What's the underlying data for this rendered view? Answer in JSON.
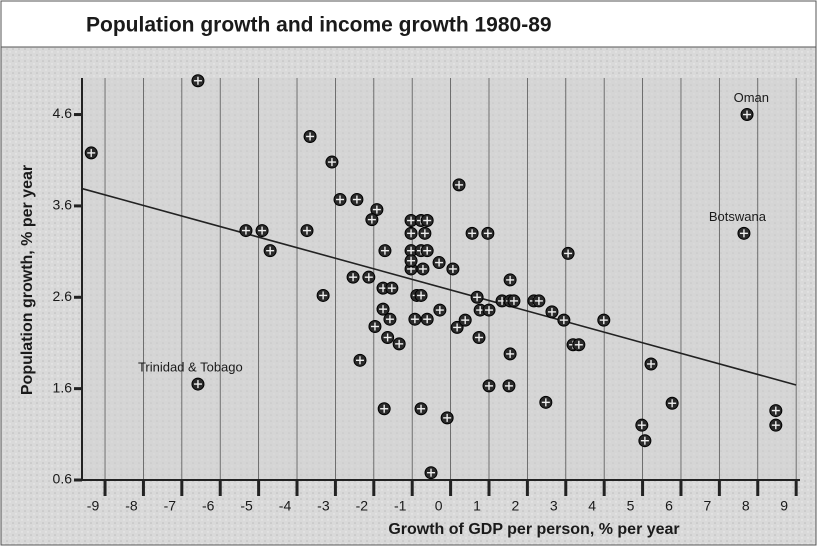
{
  "chart_data": {
    "type": "scatter",
    "title": "Population growth and income growth 1980-89",
    "xlabel": "Growth of GDP per person, % per year",
    "ylabel": "Population growth, % per year",
    "xlim": [
      -9.6,
      9.1
    ],
    "ylim": [
      0.6,
      5.0
    ],
    "xticks": [
      -9,
      -8,
      -7,
      -6,
      -5,
      -4,
      -3,
      -2,
      -1,
      0,
      1,
      2,
      3,
      4,
      5,
      6,
      7,
      8,
      9
    ],
    "yticks": [
      0.6,
      1.6,
      2.6,
      3.6,
      4.6
    ],
    "grid": "x",
    "color": "#2a2a2a",
    "x": [
      -9.36,
      -6.58,
      -6.58,
      -3.66,
      -3.09,
      -2.88,
      -2.44,
      -1.92,
      -2.05,
      -5.33,
      -4.91,
      -4.7,
      -3.74,
      -3.32,
      -2.54,
      -2.13,
      -1.71,
      -1.76,
      -1.53,
      -1.76,
      -1.58,
      -1.97,
      -1.64,
      -1.34,
      -2.36,
      -1.73,
      -1.03,
      -0.77,
      -1.03,
      -1.03,
      -1.03,
      -0.77,
      -0.61,
      -0.61,
      -0.67,
      -1.03,
      -0.72,
      -0.3,
      0.06,
      -0.88,
      -0.77,
      -0.93,
      -0.61,
      -0.28,
      0.17,
      0.38,
      -0.77,
      -0.09,
      -0.51,
      0.22,
      0.56,
      0.97,
      0.69,
      0.77,
      1.0,
      0.74,
      1.34,
      1.55,
      1.65,
      1.55,
      1.55,
      1.0,
      1.52,
      2.17,
      2.3,
      2.64,
      2.95,
      3.06,
      3.19,
      3.34,
      2.48,
      3.99,
      5.22,
      4.98,
      5.06,
      5.77,
      7.64,
      7.72,
      8.47,
      8.47
    ],
    "values": [
      4.18,
      4.97,
      1.65,
      4.36,
      4.08,
      3.67,
      3.67,
      3.56,
      3.45,
      3.33,
      3.33,
      3.11,
      3.33,
      2.62,
      2.82,
      2.82,
      3.11,
      2.7,
      2.7,
      2.47,
      2.36,
      2.28,
      2.16,
      2.09,
      1.91,
      1.38,
      3.44,
      3.44,
      3.3,
      3.11,
      2.91,
      3.11,
      3.11,
      3.44,
      3.3,
      3.0,
      2.91,
      2.98,
      2.91,
      2.62,
      2.62,
      2.36,
      2.36,
      2.46,
      2.27,
      2.35,
      1.38,
      1.28,
      0.68,
      3.83,
      3.3,
      3.3,
      2.6,
      2.46,
      2.46,
      2.16,
      2.56,
      2.56,
      2.56,
      2.79,
      1.98,
      1.63,
      1.63,
      2.56,
      2.56,
      2.44,
      2.35,
      3.08,
      2.08,
      2.08,
      1.45,
      2.35,
      1.87,
      1.2,
      1.03,
      1.44,
      3.3,
      4.6,
      1.36,
      1.2
    ],
    "trend_line": {
      "x": [
        -9.6,
        9
      ],
      "y": [
        3.79,
        1.64
      ]
    },
    "annotations": [
      {
        "text": "Oman",
        "point": 77
      },
      {
        "text": "Botswana",
        "point": 76
      },
      {
        "text": "Trinidad & Tobago",
        "point": 2
      }
    ]
  }
}
